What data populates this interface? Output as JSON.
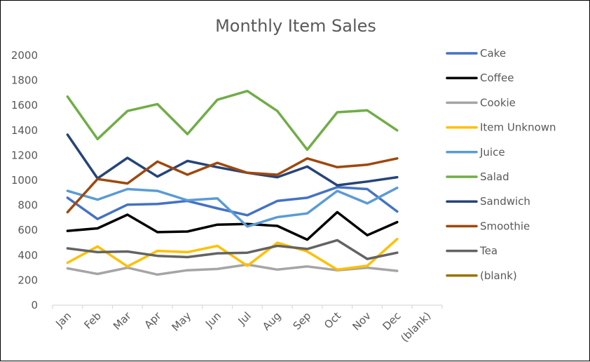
{
  "chart_data": {
    "type": "line",
    "title": "Monthly Item Sales",
    "xlabel": "",
    "ylabel": "",
    "categories": [
      "Jan",
      "Feb",
      "Mar",
      "Apr",
      "May",
      "Jun",
      "Jul",
      "Aug",
      "Sep",
      "Oct",
      "Nov",
      "Dec",
      "(blank)"
    ],
    "ylim": [
      0,
      2000
    ],
    "yticks": [
      0,
      200,
      400,
      600,
      800,
      1000,
      1200,
      1400,
      1600,
      1800,
      2000
    ],
    "grid": false,
    "legend_position": "right",
    "series": [
      {
        "name": "Cake",
        "color": "#4472C4",
        "values": [
          860,
          690,
          805,
          810,
          835,
          775,
          720,
          835,
          860,
          945,
          930,
          750,
          null
        ]
      },
      {
        "name": "Coffee",
        "color": "#000000",
        "values": [
          595,
          615,
          725,
          585,
          590,
          645,
          650,
          635,
          525,
          745,
          560,
          665,
          null
        ]
      },
      {
        "name": "Cookie",
        "color": "#A5A5A5",
        "values": [
          295,
          250,
          300,
          245,
          280,
          290,
          325,
          285,
          310,
          280,
          300,
          275,
          null
        ]
      },
      {
        "name": "Item Unknown",
        "color": "#FFC000",
        "values": [
          340,
          470,
          310,
          435,
          425,
          475,
          315,
          500,
          430,
          285,
          315,
          530,
          null
        ]
      },
      {
        "name": "Juice",
        "color": "#5B9BD5",
        "values": [
          915,
          845,
          930,
          915,
          840,
          855,
          630,
          705,
          735,
          915,
          815,
          940,
          null
        ]
      },
      {
        "name": "Salad",
        "color": "#70AD47",
        "values": [
          1670,
          1330,
          1555,
          1610,
          1370,
          1645,
          1715,
          1555,
          1245,
          1545,
          1560,
          1400,
          null
        ]
      },
      {
        "name": "Sandwich",
        "color": "#264478",
        "values": [
          1365,
          1015,
          1180,
          1030,
          1155,
          1105,
          1060,
          1025,
          1110,
          960,
          990,
          1025,
          null
        ]
      },
      {
        "name": "Smoothie",
        "color": "#9E480E",
        "values": [
          745,
          1010,
          975,
          1150,
          1045,
          1140,
          1060,
          1045,
          1175,
          1105,
          1125,
          1175,
          null
        ]
      },
      {
        "name": "Tea",
        "color": "#636363",
        "values": [
          455,
          425,
          430,
          395,
          385,
          415,
          420,
          475,
          450,
          520,
          370,
          420,
          null
        ]
      },
      {
        "name": "(blank)",
        "color": "#997300",
        "values": [
          null,
          null,
          null,
          null,
          null,
          null,
          null,
          null,
          null,
          null,
          null,
          null,
          null
        ]
      }
    ]
  }
}
